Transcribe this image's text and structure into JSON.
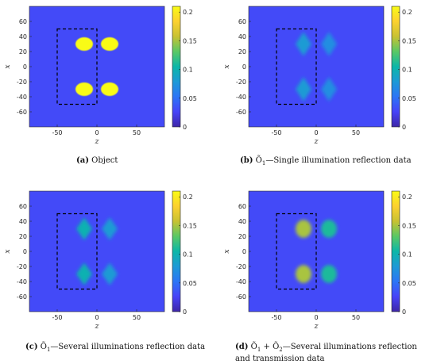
{
  "chart_data": [
    {
      "type": "heatmap",
      "panel_label": "(a)",
      "caption": "Object",
      "xlabel": "z",
      "ylabel": "x",
      "xlim": [
        -85,
        85
      ],
      "ylim": [
        -80,
        80
      ],
      "xticks": [
        -50,
        0,
        50
      ],
      "yticks": [
        60,
        40,
        20,
        0,
        -20,
        -40,
        -60
      ],
      "colorbar": {
        "min": 0,
        "max": 0.21,
        "ticks": [
          0,
          0.05,
          0.1,
          0.15,
          0.2
        ],
        "tick_labels": [
          "0",
          "0.05",
          "0.1",
          "0.15",
          "0.2"
        ]
      },
      "background_value": 0.03,
      "dashed_box": {
        "z": [
          -50,
          0
        ],
        "x": [
          -50,
          50
        ]
      },
      "blobs": [
        {
          "z": -16,
          "x": 30,
          "rz": 11,
          "rx": 9,
          "value": 0.21,
          "shape": "ellipse"
        },
        {
          "z": 16,
          "x": 30,
          "rz": 11,
          "rx": 9,
          "value": 0.21,
          "shape": "ellipse"
        },
        {
          "z": -16,
          "x": -30,
          "rz": 11,
          "rx": 9,
          "value": 0.21,
          "shape": "ellipse"
        },
        {
          "z": 16,
          "x": -30,
          "rz": 11,
          "rx": 9,
          "value": 0.21,
          "shape": "ellipse"
        }
      ]
    },
    {
      "type": "heatmap",
      "panel_label": "(b)",
      "caption_symbol": "Õ",
      "caption_sub": "1",
      "caption": "—Single illumination reflection data",
      "xlabel": "z",
      "ylabel": "x",
      "xlim": [
        -85,
        85
      ],
      "ylim": [
        -80,
        80
      ],
      "xticks": [
        -50,
        0,
        50
      ],
      "yticks": [
        60,
        40,
        20,
        0,
        -20,
        -40,
        -60
      ],
      "colorbar": {
        "min": 0,
        "max": 0.21,
        "ticks": [
          0,
          0.05,
          0.1,
          0.15,
          0.2
        ],
        "tick_labels": [
          "0",
          "0.05",
          "0.1",
          "0.15",
          "0.2"
        ]
      },
      "background_value": 0.03,
      "dashed_box": {
        "z": [
          -50,
          0
        ],
        "x": [
          -50,
          50
        ]
      },
      "blobs": [
        {
          "z": -16,
          "x": 30,
          "rz": 10,
          "rx": 16,
          "value": 0.08,
          "shape": "diamond"
        },
        {
          "z": 16,
          "x": 30,
          "rz": 10,
          "rx": 16,
          "value": 0.07,
          "shape": "diamond"
        },
        {
          "z": -16,
          "x": -30,
          "rz": 10,
          "rx": 16,
          "value": 0.08,
          "shape": "diamond"
        },
        {
          "z": 16,
          "x": -30,
          "rz": 10,
          "rx": 16,
          "value": 0.07,
          "shape": "diamond"
        }
      ]
    },
    {
      "type": "heatmap",
      "panel_label": "(c)",
      "caption_symbol": "Õ",
      "caption_sub": "1",
      "caption": "—Several illuminations reflection data",
      "xlabel": "z",
      "ylabel": "x",
      "xlim": [
        -85,
        85
      ],
      "ylim": [
        -80,
        80
      ],
      "xticks": [
        -50,
        0,
        50
      ],
      "yticks": [
        60,
        40,
        20,
        0,
        -20,
        -40,
        -60
      ],
      "colorbar": {
        "min": 0,
        "max": 0.21,
        "ticks": [
          0,
          0.05,
          0.1,
          0.15,
          0.2
        ],
        "tick_labels": [
          "0",
          "0.05",
          "0.1",
          "0.15",
          "0.2"
        ]
      },
      "background_value": 0.03,
      "dashed_box": {
        "z": [
          -50,
          0
        ],
        "x": [
          -50,
          50
        ]
      },
      "blobs": [
        {
          "z": -16,
          "x": 30,
          "rz": 10,
          "rx": 15,
          "value": 0.1,
          "shape": "diamond"
        },
        {
          "z": 16,
          "x": 30,
          "rz": 10,
          "rx": 15,
          "value": 0.08,
          "shape": "diamond"
        },
        {
          "z": -16,
          "x": -30,
          "rz": 10,
          "rx": 15,
          "value": 0.1,
          "shape": "diamond"
        },
        {
          "z": 16,
          "x": -30,
          "rz": 10,
          "rx": 15,
          "value": 0.08,
          "shape": "diamond"
        }
      ]
    },
    {
      "type": "heatmap",
      "panel_label": "(d)",
      "caption_symbol": "Õ",
      "caption_sub": "1",
      "caption_symbol2": "Õ",
      "caption_sub2": "2",
      "caption": "—Several illuminations reflection and transmission data",
      "xlabel": "z",
      "ylabel": "x",
      "xlim": [
        -85,
        85
      ],
      "ylim": [
        -80,
        80
      ],
      "xticks": [
        -50,
        0,
        50
      ],
      "yticks": [
        60,
        40,
        20,
        0,
        -20,
        -40,
        -60
      ],
      "colorbar": {
        "min": 0,
        "max": 0.21,
        "ticks": [
          0,
          0.05,
          0.1,
          0.15,
          0.2
        ],
        "tick_labels": [
          "0",
          "0.05",
          "0.1",
          "0.15",
          "0.2"
        ]
      },
      "background_value": 0.03,
      "dashed_box": {
        "z": [
          -50,
          0
        ],
        "x": [
          -50,
          50
        ]
      },
      "blobs": [
        {
          "z": -16,
          "x": 30,
          "rz": 10,
          "rx": 12,
          "value": 0.15,
          "shape": "ellipse"
        },
        {
          "z": 16,
          "x": 30,
          "rz": 10,
          "rx": 12,
          "value": 0.11,
          "shape": "ellipse"
        },
        {
          "z": -16,
          "x": -30,
          "rz": 10,
          "rx": 12,
          "value": 0.15,
          "shape": "ellipse"
        },
        {
          "z": 16,
          "x": -30,
          "rz": 10,
          "rx": 12,
          "value": 0.11,
          "shape": "ellipse"
        }
      ]
    }
  ],
  "colors": {
    "colormap": [
      "#3e26a8",
      "#4743f8",
      "#2c75f6",
      "#1d9ad6",
      "#0cb7a8",
      "#5ac865",
      "#c8c232",
      "#fcd12f",
      "#f9fb15"
    ],
    "dashed_box": "#000000"
  }
}
